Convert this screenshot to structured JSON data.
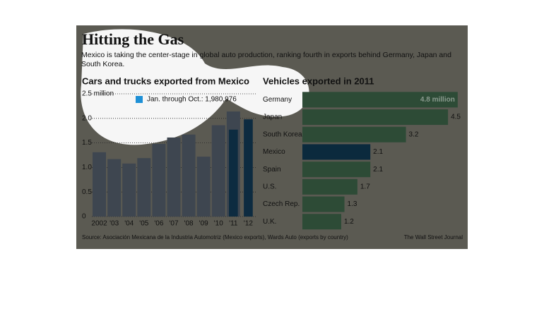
{
  "title": "Hitting the Gas",
  "subtitle": "Mexico is taking the center-stage in global auto production, ranking fourth in exports behind Germany, Japan and South Korea.",
  "source": "Source:  Asociación Mexicana de la Industria Automotriz (Mexico exports), Wards Auto (exports by country)",
  "credit": "The Wall Street Journal",
  "chart_data": [
    {
      "type": "bar",
      "title": "Cars and trucks exported from Mexico",
      "categories": [
        "2002",
        "'03",
        "'04",
        "'05",
        "'06",
        "'07",
        "'08",
        "'09",
        "'10",
        "'11",
        "'12"
      ],
      "values": [
        1.31,
        1.17,
        1.08,
        1.19,
        1.48,
        1.61,
        1.67,
        1.22,
        1.86,
        2.14,
        null
      ],
      "color": "#3e4650",
      "jan_oct": {
        "label": "Jan. through Oct.: 1,980,976",
        "color": "#0d2b40",
        "values": [
          null,
          null,
          null,
          null,
          null,
          null,
          null,
          null,
          null,
          1.77,
          1.98
        ]
      },
      "ylim": [
        0,
        2.5
      ],
      "yticks": [
        0,
        0.5,
        {
          "value": 1,
          "label": "1.0"
        },
        1.5,
        {
          "value": 2,
          "label": "2.0"
        },
        {
          "value": 2.5,
          "label": "2.5 million"
        }
      ],
      "grid": true
    },
    {
      "type": "hbar",
      "title": "Vehicles exported in 2011",
      "categories": [
        "Germany",
        "Japan",
        "South Korea",
        "Mexico",
        "Spain",
        "U.S.",
        "Czech Rep.",
        "U.K."
      ],
      "values": [
        4.8,
        4.5,
        3.2,
        2.1,
        2.1,
        1.7,
        1.3,
        1.2
      ],
      "value_labels": [
        "4.8 million",
        "4.5",
        "3.2",
        "2.1",
        "2.1",
        "1.7",
        "1.3",
        "1.2"
      ],
      "color": "#2d4b36",
      "highlight_color": "#0b2a3d",
      "highlight": "Mexico"
    }
  ]
}
